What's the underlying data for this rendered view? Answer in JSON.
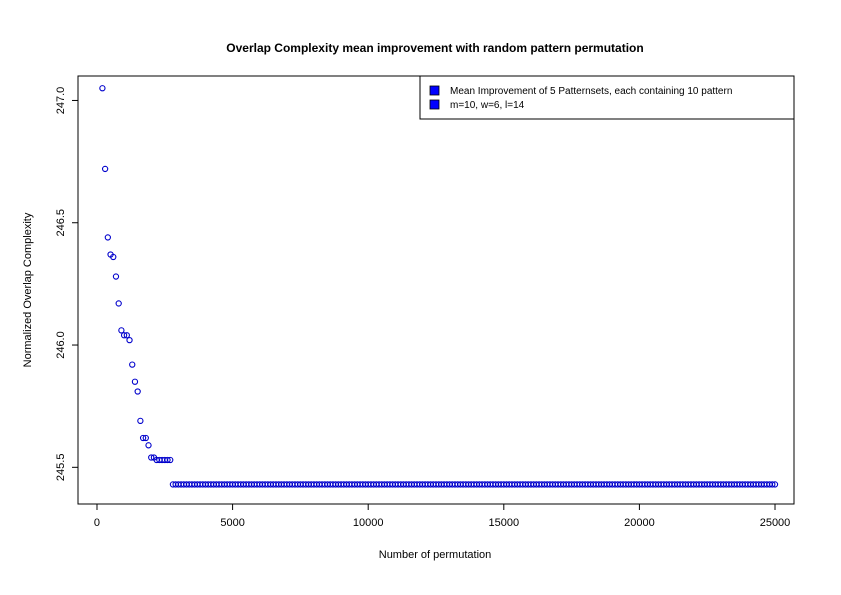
{
  "chart_data": {
    "type": "scatter",
    "title": "Overlap Complexity mean improvement with random pattern permutation",
    "xlabel": "Number of permutation",
    "ylabel": "Normalized Overlap Complexity",
    "xlim": [
      -700,
      25700
    ],
    "ylim": [
      245.35,
      247.1
    ],
    "xticks": [
      0,
      5000,
      10000,
      15000,
      20000,
      25000
    ],
    "xtick_labels": [
      "0",
      "5000",
      "10000",
      "15000",
      "20000",
      "25000"
    ],
    "yticks": [
      245.5,
      246.0,
      246.5,
      247.0
    ],
    "ytick_labels": [
      "245.5",
      "246.0",
      "246.5",
      "247.0"
    ],
    "grid": false,
    "legend_position": "top-right",
    "legend": [
      "Mean Improvement of 5 Patternsets, each containing 10 pattern",
      "m=10, w=6, l=14"
    ],
    "marker_color": "#0000cc",
    "legend_swatch_color": "#0000ff",
    "series": [
      {
        "points": [
          [
            200,
            247.05
          ],
          [
            300,
            246.72
          ],
          [
            400,
            246.44
          ],
          [
            500,
            246.37
          ],
          [
            600,
            246.36
          ],
          [
            700,
            246.28
          ],
          [
            800,
            246.17
          ],
          [
            900,
            246.06
          ],
          [
            1000,
            246.04
          ],
          [
            1100,
            246.04
          ],
          [
            1200,
            246.02
          ],
          [
            1300,
            245.92
          ],
          [
            1400,
            245.85
          ],
          [
            1500,
            245.81
          ],
          [
            1600,
            245.69
          ],
          [
            1700,
            245.62
          ],
          [
            1800,
            245.62
          ],
          [
            1900,
            245.59
          ],
          [
            2000,
            245.54
          ],
          [
            2100,
            245.54
          ],
          [
            2200,
            245.53
          ],
          [
            2300,
            245.53
          ],
          [
            2400,
            245.53
          ],
          [
            2500,
            245.53
          ],
          [
            2600,
            245.53
          ],
          [
            2700,
            245.53
          ]
        ],
        "plateau": {
          "x_start": 2800,
          "x_end": 25000,
          "step": 100,
          "y": 245.43
        }
      }
    ]
  }
}
